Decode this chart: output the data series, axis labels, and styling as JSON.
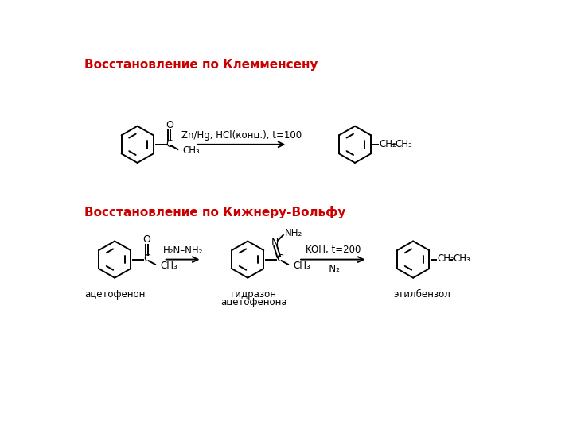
{
  "title1": "Восстановление по Клемменсену",
  "title2": "Восстановление по Кижнеру-Вольфу",
  "title_color": "#cc0000",
  "title_fontsize": 11,
  "bg_color": "#ffffff",
  "line_color": "#000000",
  "text_color": "#000000",
  "arrow_color": "#000000",
  "reaction1_reagent": "Zn/Hg, HCl(конц.), t=100",
  "reaction2_reagent1": "H₂N–NH₂",
  "reaction2_reagent2": "KOH, t=200",
  "reaction2_byproduct": "-N₂",
  "label_acetophenone": "ацетофенон",
  "label_hydrazone_1": "гидразон",
  "label_hydrazone_2": "ацетофенона",
  "label_ethylbenzene": "этилбензол"
}
